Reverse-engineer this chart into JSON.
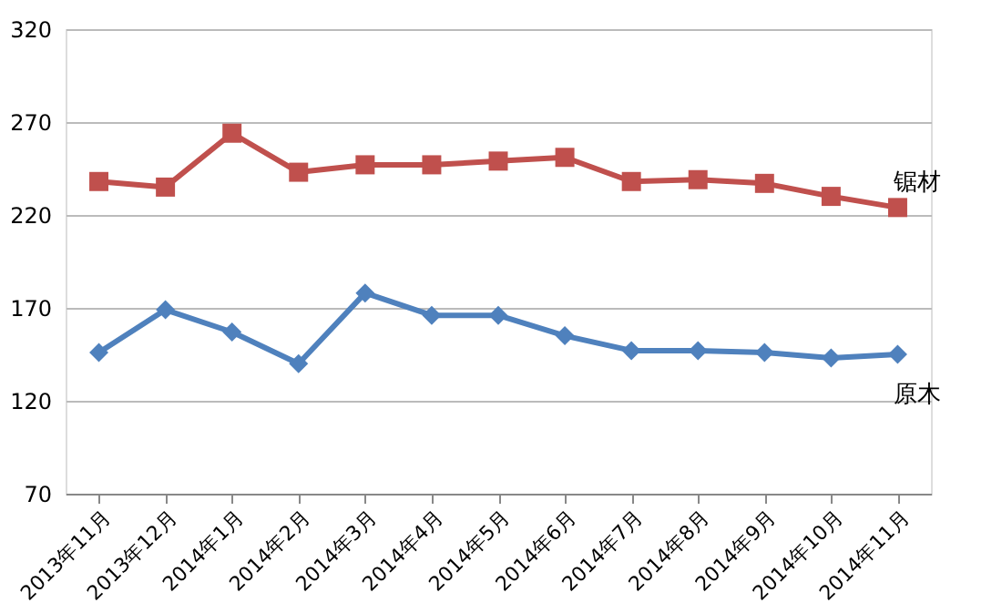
{
  "chart_data": {
    "type": "line",
    "categories": [
      "2013年11月",
      "2013年12月",
      "2014年1月",
      "2014年2月",
      "2014年3月",
      "2014年4月",
      "2014年5月",
      "2014年6月",
      "2014年7月",
      "2014年8月",
      "2014年9月",
      "2014年10月",
      "2014年11月"
    ],
    "series": [
      {
        "name": "锯材",
        "color": "#c0504d",
        "marker": "square",
        "values": [
          238,
          235,
          264,
          243,
          247,
          247,
          249,
          251,
          238,
          239,
          237,
          230,
          224
        ]
      },
      {
        "name": "原木",
        "color": "#4f81bd",
        "marker": "diamond",
        "values": [
          146,
          169,
          157,
          140,
          178,
          166,
          166,
          155,
          147,
          147,
          146,
          143,
          145
        ]
      }
    ],
    "ylim": [
      70,
      320
    ],
    "yticks": [
      70,
      120,
      170,
      220,
      270,
      320
    ],
    "grid": "y"
  }
}
